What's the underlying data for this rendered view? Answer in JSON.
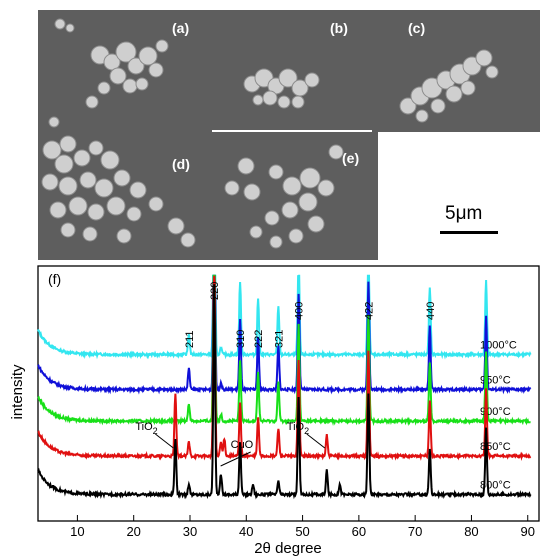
{
  "sem_panels": [
    {
      "label": "(a)"
    },
    {
      "label": "(b)"
    },
    {
      "label": "(c)"
    },
    {
      "label": "(d)"
    },
    {
      "label": "(e)"
    }
  ],
  "scale_bar": {
    "label": "5μm"
  },
  "colors": {
    "sem_background": "#5e5e5e",
    "particle": "#cfcfcf",
    "series_1000": "#33e6f0",
    "series_950": "#1010d8",
    "series_900": "#18e018",
    "series_850": "#e01010",
    "series_800": "#000000"
  },
  "chart_data": {
    "type": "line",
    "panel_label": "(f)",
    "xlabel": "2θ degree",
    "ylabel": "intensity",
    "xlim": [
      3,
      92
    ],
    "xticks": [
      10,
      20,
      30,
      40,
      50,
      60,
      70,
      80,
      90
    ],
    "series": [
      {
        "name": "1000°C",
        "color": "#33e6f0",
        "baseline": 0.9,
        "peaks": [
          [
            29.8,
            0.12
          ],
          [
            34.3,
            1.2
          ],
          [
            35.5,
            0.04
          ],
          [
            38.9,
            0.42
          ],
          [
            42.1,
            0.32
          ],
          [
            45.7,
            0.28
          ],
          [
            49.3,
            0.55
          ],
          [
            61.7,
            0.62
          ],
          [
            72.6,
            0.38
          ],
          [
            82.6,
            0.42
          ]
        ]
      },
      {
        "name": "950°C",
        "color": "#1010d8",
        "baseline": 0.7,
        "peaks": [
          [
            29.8,
            0.12
          ],
          [
            34.3,
            1.2
          ],
          [
            35.5,
            0.04
          ],
          [
            38.9,
            0.4
          ],
          [
            42.1,
            0.3
          ],
          [
            45.7,
            0.25
          ],
          [
            49.3,
            0.55
          ],
          [
            61.7,
            0.62
          ],
          [
            72.6,
            0.36
          ],
          [
            82.6,
            0.42
          ]
        ]
      },
      {
        "name": "900°C",
        "color": "#18e018",
        "baseline": 0.52,
        "peaks": [
          [
            29.8,
            0.1
          ],
          [
            34.3,
            1.2
          ],
          [
            35.5,
            0.04
          ],
          [
            38.9,
            0.35
          ],
          [
            42.1,
            0.28
          ],
          [
            45.7,
            0.22
          ],
          [
            49.3,
            0.55
          ],
          [
            61.7,
            0.6
          ],
          [
            72.6,
            0.34
          ],
          [
            82.6,
            0.4
          ]
        ]
      },
      {
        "name": "850°C",
        "color": "#e01010",
        "baseline": 0.32,
        "peaks": [
          [
            27.4,
            0.36
          ],
          [
            29.8,
            0.08
          ],
          [
            34.3,
            1.2
          ],
          [
            35.5,
            0.08
          ],
          [
            36.1,
            0.1
          ],
          [
            38.9,
            0.3
          ],
          [
            42.1,
            0.22
          ],
          [
            45.7,
            0.16
          ],
          [
            49.3,
            0.55
          ],
          [
            54.3,
            0.12
          ],
          [
            61.7,
            0.6
          ],
          [
            72.6,
            0.32
          ],
          [
            82.6,
            0.38
          ]
        ]
      },
      {
        "name": "800°C",
        "color": "#000000",
        "baseline": 0.1,
        "peaks": [
          [
            27.4,
            0.32
          ],
          [
            29.8,
            0.06
          ],
          [
            34.3,
            1.2
          ],
          [
            35.5,
            0.12
          ],
          [
            38.9,
            0.3
          ],
          [
            41.2,
            0.06
          ],
          [
            45.7,
            0.08
          ],
          [
            49.3,
            0.55
          ],
          [
            54.3,
            0.14
          ],
          [
            56.6,
            0.06
          ],
          [
            61.7,
            0.58
          ],
          [
            72.6,
            0.26
          ],
          [
            82.6,
            0.38
          ]
        ]
      }
    ],
    "peak_labels": [
      {
        "text": "211",
        "x": 29.8
      },
      {
        "text": "220",
        "x": 34.3
      },
      {
        "text": "310",
        "x": 38.9
      },
      {
        "text": "222",
        "x": 42.1
      },
      {
        "text": "321",
        "x": 45.7
      },
      {
        "text": "400",
        "x": 49.3
      },
      {
        "text": "422",
        "x": 61.7
      },
      {
        "text": "440",
        "x": 72.6
      }
    ],
    "annotations": [
      {
        "main": "TiO",
        "sub": "2",
        "x": 27.4
      },
      {
        "main": "CuO",
        "sub": "",
        "x": 35.8
      },
      {
        "main": "TiO",
        "sub": "2",
        "x": 54.3
      }
    ]
  }
}
